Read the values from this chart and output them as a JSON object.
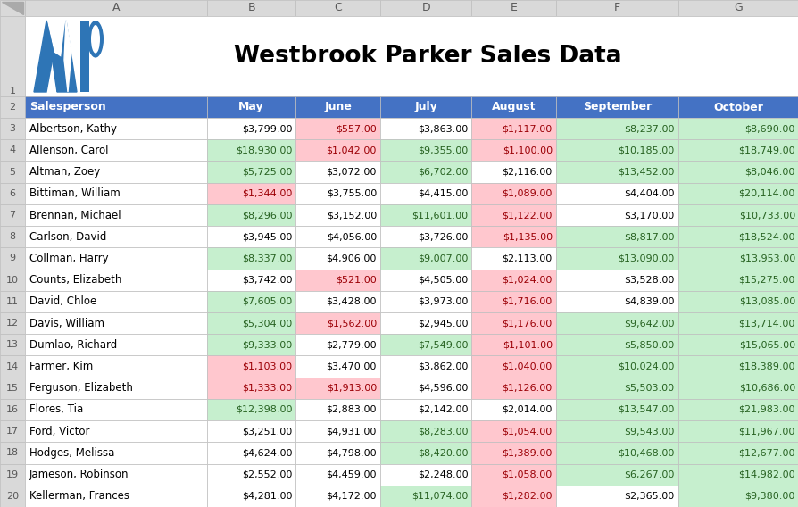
{
  "title": "Westbrook Parker Sales Data",
  "header_bg": "#4472C4",
  "header_fg": "#FFFFFF",
  "col_header_bg": "#D9D9D9",
  "col_header_fg": "#595959",
  "grid_color": "#BFBFBF",
  "outer_bg": "#D9D9D9",
  "columns": [
    "Salesperson",
    "May",
    "June",
    "July",
    "August",
    "September",
    "October"
  ],
  "col_letters": [
    "A",
    "B",
    "C",
    "D",
    "E",
    "F",
    "G"
  ],
  "rows": [
    [
      "Albertson, Kathy",
      3799,
      557,
      3863,
      1117,
      8237,
      8690
    ],
    [
      "Allenson, Carol",
      18930,
      1042,
      9355,
      1100,
      10185,
      18749
    ],
    [
      "Altman, Zoey",
      5725,
      3072,
      6702,
      2116,
      13452,
      8046
    ],
    [
      "Bittiman, William",
      1344,
      3755,
      4415,
      1089,
      4404,
      20114
    ],
    [
      "Brennan, Michael",
      8296,
      3152,
      11601,
      1122,
      3170,
      10733
    ],
    [
      "Carlson, David",
      3945,
      4056,
      3726,
      1135,
      8817,
      18524
    ],
    [
      "Collman, Harry",
      8337,
      4906,
      9007,
      2113,
      13090,
      13953
    ],
    [
      "Counts, Elizabeth",
      3742,
      521,
      4505,
      1024,
      3528,
      15275
    ],
    [
      "David, Chloe",
      7605,
      3428,
      3973,
      1716,
      4839,
      13085
    ],
    [
      "Davis, William",
      5304,
      1562,
      2945,
      1176,
      9642,
      13714
    ],
    [
      "Dumlao, Richard",
      9333,
      2779,
      7549,
      1101,
      5850,
      15065
    ],
    [
      "Farmer, Kim",
      1103,
      3470,
      3862,
      1040,
      10024,
      18389
    ],
    [
      "Ferguson, Elizabeth",
      1333,
      1913,
      4596,
      1126,
      5503,
      10686
    ],
    [
      "Flores, Tia",
      12398,
      2883,
      2142,
      2014,
      13547,
      21983
    ],
    [
      "Ford, Victor",
      3251,
      4931,
      8283,
      1054,
      9543,
      11967
    ],
    [
      "Hodges, Melissa",
      4624,
      4798,
      8420,
      1389,
      10468,
      12677
    ],
    [
      "Jameson, Robinson",
      2552,
      4459,
      2248,
      1058,
      6267,
      14982
    ],
    [
      "Kellerman, Frances",
      4281,
      4172,
      11074,
      1282,
      2365,
      9380
    ]
  ],
  "green_bg": "#C6EFCE",
  "green_fg": "#276221",
  "red_bg": "#FFC7CE",
  "red_fg": "#9C0006",
  "white_bg": "#FFFFFF",
  "black_fg": "#000000",
  "green_threshold": 5000,
  "red_threshold": 2000,
  "logo_color": "#2E75B6"
}
